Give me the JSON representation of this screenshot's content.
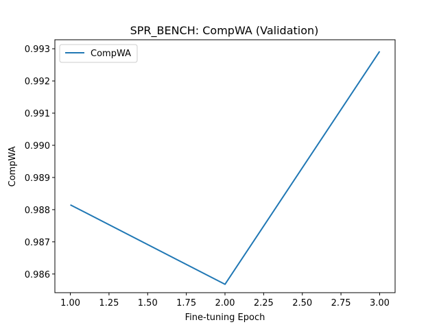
{
  "chart_data": {
    "type": "line",
    "title": "SPR_BENCH: CompWA (Validation)",
    "xlabel": "Fine-tuning Epoch",
    "ylabel": "CompWA",
    "x": [
      1.0,
      2.0,
      3.0
    ],
    "series": [
      {
        "name": "CompWA",
        "values": [
          0.98815,
          0.98568,
          0.99292
        ],
        "color": "#1f77b4"
      }
    ],
    "xlim": [
      0.9,
      3.1
    ],
    "ylim": [
      0.98542,
      0.99328
    ],
    "xticks": [
      1.0,
      1.25,
      1.5,
      1.75,
      2.0,
      2.25,
      2.5,
      2.75,
      3.0
    ],
    "xtick_labels": [
      "1.00",
      "1.25",
      "1.50",
      "1.75",
      "2.00",
      "2.25",
      "2.50",
      "2.75",
      "3.00"
    ],
    "yticks": [
      0.986,
      0.987,
      0.988,
      0.989,
      0.99,
      0.991,
      0.992,
      0.993
    ],
    "ytick_labels": [
      "0.986",
      "0.987",
      "0.988",
      "0.989",
      "0.990",
      "0.991",
      "0.992",
      "0.993"
    ],
    "grid": false,
    "legend_position": "upper-left"
  }
}
